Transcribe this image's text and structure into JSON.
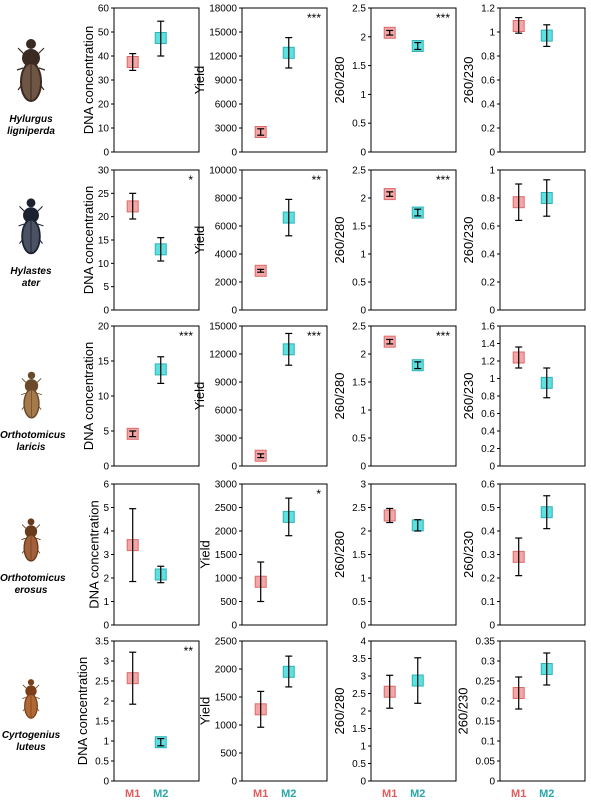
{
  "colors": {
    "M1": "#f4a6a6",
    "M1_edge": "#d96b6b",
    "M2": "#5fe0e0",
    "M2_edge": "#2fb3b8",
    "M1_label": "#e05c5c",
    "M2_label": "#2aa6a8"
  },
  "species": [
    {
      "genus": "Hylurgus",
      "epithet": "ligniperda",
      "icon": "beetle-dark-icon"
    },
    {
      "genus": "Hylastes",
      "epithet": "ater",
      "icon": "beetle-black-icon"
    },
    {
      "genus": "Orthotomicus",
      "epithet": "laricis",
      "icon": "beetle-brown-icon"
    },
    {
      "genus": "Orthotomicus",
      "epithet": "erosus",
      "icon": "beetle-reddish-icon"
    },
    {
      "genus": "Cyrtogenius",
      "epithet": "luteus",
      "icon": "beetle-light-icon"
    }
  ],
  "x_categories": [
    "M1",
    "M2"
  ],
  "chart_data": [
    {
      "type": "scatter",
      "row": 0,
      "col": 0,
      "ylabel": "DNA concentration",
      "ylim": [
        0,
        60
      ],
      "ticks": [
        "0",
        "10",
        "20",
        "30",
        "40",
        "50",
        "60"
      ],
      "categories": [
        "M1",
        "M2"
      ],
      "values": [
        37.5,
        47.5
      ],
      "err_low": [
        34,
        40
      ],
      "err_high": [
        41,
        54.5
      ],
      "sig": ""
    },
    {
      "type": "scatter",
      "row": 0,
      "col": 1,
      "ylabel": "Yield",
      "ylim": [
        0,
        18000
      ],
      "ticks": [
        "0",
        "3000",
        "6000",
        "9000",
        "12000",
        "15000",
        "18000"
      ],
      "categories": [
        "M1",
        "M2"
      ],
      "values": [
        2500,
        12400
      ],
      "err_low": [
        2100,
        10500
      ],
      "err_high": [
        2900,
        14300
      ],
      "sig": "***"
    },
    {
      "type": "scatter",
      "row": 0,
      "col": 2,
      "ylabel": "260/280",
      "ylim": [
        0,
        2.5
      ],
      "ticks": [
        "0",
        "0.5",
        "1",
        "1.5",
        "2",
        "2.5"
      ],
      "categories": [
        "M1",
        "M2"
      ],
      "values": [
        2.07,
        1.84
      ],
      "err_low": [
        2.03,
        1.78
      ],
      "err_high": [
        2.11,
        1.9
      ],
      "sig": "***"
    },
    {
      "type": "scatter",
      "row": 0,
      "col": 3,
      "ylabel": "260/230",
      "ylim": [
        0,
        1.2
      ],
      "ticks": [
        "0",
        "0.2",
        "0.4",
        "0.6",
        "0.8",
        "1",
        "1.2"
      ],
      "categories": [
        "M1",
        "M2"
      ],
      "values": [
        1.05,
        0.97
      ],
      "err_low": [
        0.99,
        0.88
      ],
      "err_high": [
        1.12,
        1.06
      ],
      "sig": ""
    },
    {
      "type": "scatter",
      "row": 1,
      "col": 0,
      "ylabel": "DNA concentration",
      "ylim": [
        0,
        30
      ],
      "ticks": [
        "0",
        "5",
        "10",
        "15",
        "20",
        "25",
        "30"
      ],
      "categories": [
        "M1",
        "M2"
      ],
      "values": [
        22.2,
        13
      ],
      "err_low": [
        19.5,
        10.5
      ],
      "err_high": [
        25,
        15.5
      ],
      "sig": "*"
    },
    {
      "type": "scatter",
      "row": 1,
      "col": 1,
      "ylabel": "Yield",
      "ylim": [
        0,
        10000
      ],
      "ticks": [
        "0",
        "2000",
        "4000",
        "6000",
        "8000",
        "10000"
      ],
      "categories": [
        "M1",
        "M2"
      ],
      "values": [
        2800,
        6600
      ],
      "err_low": [
        2700,
        5300
      ],
      "err_high": [
        2900,
        7900
      ],
      "sig": "**"
    },
    {
      "type": "scatter",
      "row": 1,
      "col": 2,
      "ylabel": "260/280",
      "ylim": [
        0,
        2.5
      ],
      "ticks": [
        "0",
        "0.5",
        "1",
        "1.5",
        "2",
        "2.5"
      ],
      "categories": [
        "M1",
        "M2"
      ],
      "values": [
        2.07,
        1.74
      ],
      "err_low": [
        2.03,
        1.68
      ],
      "err_high": [
        2.11,
        1.8
      ],
      "sig": "***"
    },
    {
      "type": "scatter",
      "row": 1,
      "col": 3,
      "ylabel": "260/230",
      "ylim": [
        0,
        1
      ],
      "ticks": [
        "0",
        "0.2",
        "0.4",
        "0.6",
        "0.8",
        "1"
      ],
      "categories": [
        "M1",
        "M2"
      ],
      "values": [
        0.77,
        0.8
      ],
      "err_low": [
        0.64,
        0.67
      ],
      "err_high": [
        0.9,
        0.93
      ],
      "sig": ""
    },
    {
      "type": "scatter",
      "row": 2,
      "col": 0,
      "ylabel": "DNA concentration",
      "ylim": [
        0,
        20
      ],
      "ticks": [
        "0",
        "5",
        "10",
        "15",
        "20"
      ],
      "categories": [
        "M1",
        "M2"
      ],
      "values": [
        4.6,
        13.8
      ],
      "err_low": [
        4.2,
        11.8
      ],
      "err_high": [
        5,
        15.6
      ],
      "sig": "***"
    },
    {
      "type": "scatter",
      "row": 2,
      "col": 1,
      "ylabel": "Yield",
      "ylim": [
        0,
        15000
      ],
      "ticks": [
        "0",
        "3000",
        "6000",
        "9000",
        "12000",
        "15000"
      ],
      "categories": [
        "M1",
        "M2"
      ],
      "values": [
        1100,
        12500
      ],
      "err_low": [
        900,
        10800
      ],
      "err_high": [
        1300,
        14200
      ],
      "sig": "***"
    },
    {
      "type": "scatter",
      "row": 2,
      "col": 2,
      "ylabel": "260/280",
      "ylim": [
        0,
        2.5
      ],
      "ticks": [
        "0",
        "0.5",
        "1",
        "1.5",
        "2",
        "2.5"
      ],
      "categories": [
        "M1",
        "M2"
      ],
      "values": [
        2.22,
        1.8
      ],
      "err_low": [
        2.18,
        1.74
      ],
      "err_high": [
        2.26,
        1.86
      ],
      "sig": "***"
    },
    {
      "type": "scatter",
      "row": 2,
      "col": 3,
      "ylabel": "260/230",
      "ylim": [
        0,
        1.6
      ],
      "ticks": [
        "0",
        "0.2",
        "0.4",
        "0.6",
        "0.8",
        "1",
        "1.2",
        "1.4",
        "1.6"
      ],
      "categories": [
        "M1",
        "M2"
      ],
      "values": [
        1.24,
        0.95
      ],
      "err_low": [
        1.12,
        0.78
      ],
      "err_high": [
        1.36,
        1.12
      ],
      "sig": ""
    },
    {
      "type": "scatter",
      "row": 3,
      "col": 0,
      "ylabel": "DNA concentration",
      "ylim": [
        0,
        6
      ],
      "ticks": [
        "0",
        "1",
        "2",
        "3",
        "4",
        "5",
        "6"
      ],
      "categories": [
        "M1",
        "M2"
      ],
      "values": [
        3.4,
        2.15
      ],
      "err_low": [
        1.85,
        1.8
      ],
      "err_high": [
        4.95,
        2.5
      ],
      "sig": ""
    },
    {
      "type": "scatter",
      "row": 3,
      "col": 1,
      "ylabel": "Yield",
      "ylim": [
        0,
        3000
      ],
      "ticks": [
        "0",
        "500",
        "1000",
        "1500",
        "2000",
        "2500",
        "3000"
      ],
      "categories": [
        "M1",
        "M2"
      ],
      "values": [
        920,
        2300
      ],
      "err_low": [
        500,
        1900
      ],
      "err_high": [
        1340,
        2700
      ],
      "sig": "*"
    },
    {
      "type": "scatter",
      "row": 3,
      "col": 2,
      "ylabel": "260/280",
      "ylim": [
        0,
        3
      ],
      "ticks": [
        "0",
        "0.5",
        "1",
        "1.5",
        "2",
        "2.5",
        "3"
      ],
      "categories": [
        "M1",
        "M2"
      ],
      "values": [
        2.33,
        2.12
      ],
      "err_low": [
        2.18,
        2.0
      ],
      "err_high": [
        2.48,
        2.24
      ],
      "sig": ""
    },
    {
      "type": "scatter",
      "row": 3,
      "col": 3,
      "ylabel": "260/230",
      "ylim": [
        0,
        0.6
      ],
      "ticks": [
        "0",
        "0.1",
        "0.2",
        "0.3",
        "0.4",
        "0.5",
        "0.6"
      ],
      "categories": [
        "M1",
        "M2"
      ],
      "values": [
        0.29,
        0.48
      ],
      "err_low": [
        0.21,
        0.41
      ],
      "err_high": [
        0.37,
        0.55
      ],
      "sig": ""
    },
    {
      "type": "scatter",
      "row": 4,
      "col": 0,
      "ylabel": "DNA concentration",
      "ylim": [
        0,
        3.5
      ],
      "ticks": [
        "0",
        "0.5",
        "1",
        "1.5",
        "2",
        "2.5",
        "3",
        "3.5"
      ],
      "categories": [
        "M1",
        "M2"
      ],
      "values": [
        2.57,
        0.97
      ],
      "err_low": [
        1.92,
        0.88
      ],
      "err_high": [
        3.22,
        1.06
      ],
      "sig": "**"
    },
    {
      "type": "scatter",
      "row": 4,
      "col": 1,
      "ylabel": "Yield",
      "ylim": [
        0,
        2500
      ],
      "ticks": [
        "0",
        "500",
        "1000",
        "1500",
        "2000",
        "2500"
      ],
      "categories": [
        "M1",
        "M2"
      ],
      "values": [
        1280,
        1950
      ],
      "err_low": [
        960,
        1680
      ],
      "err_high": [
        1600,
        2230
      ],
      "sig": ""
    },
    {
      "type": "scatter",
      "row": 4,
      "col": 2,
      "ylabel": "260/280",
      "ylim": [
        0,
        4
      ],
      "ticks": [
        "0",
        "0.5",
        "1",
        "1.5",
        "2",
        "2.5",
        "3",
        "3.5",
        "4"
      ],
      "categories": [
        "M1",
        "M2"
      ],
      "values": [
        2.55,
        2.87
      ],
      "err_low": [
        2.08,
        2.22
      ],
      "err_high": [
        3.02,
        3.52
      ],
      "sig": ""
    },
    {
      "type": "scatter",
      "row": 4,
      "col": 3,
      "ylabel": "260/230",
      "ylim": [
        0,
        0.35
      ],
      "ticks": [
        "0",
        "0.05",
        "0.1",
        "0.15",
        "0.2",
        "0.25",
        "0.3",
        "0.35"
      ],
      "categories": [
        "M1",
        "M2"
      ],
      "values": [
        0.22,
        0.28
      ],
      "err_low": [
        0.18,
        0.24
      ],
      "err_high": [
        0.26,
        0.32
      ],
      "sig": ""
    }
  ]
}
